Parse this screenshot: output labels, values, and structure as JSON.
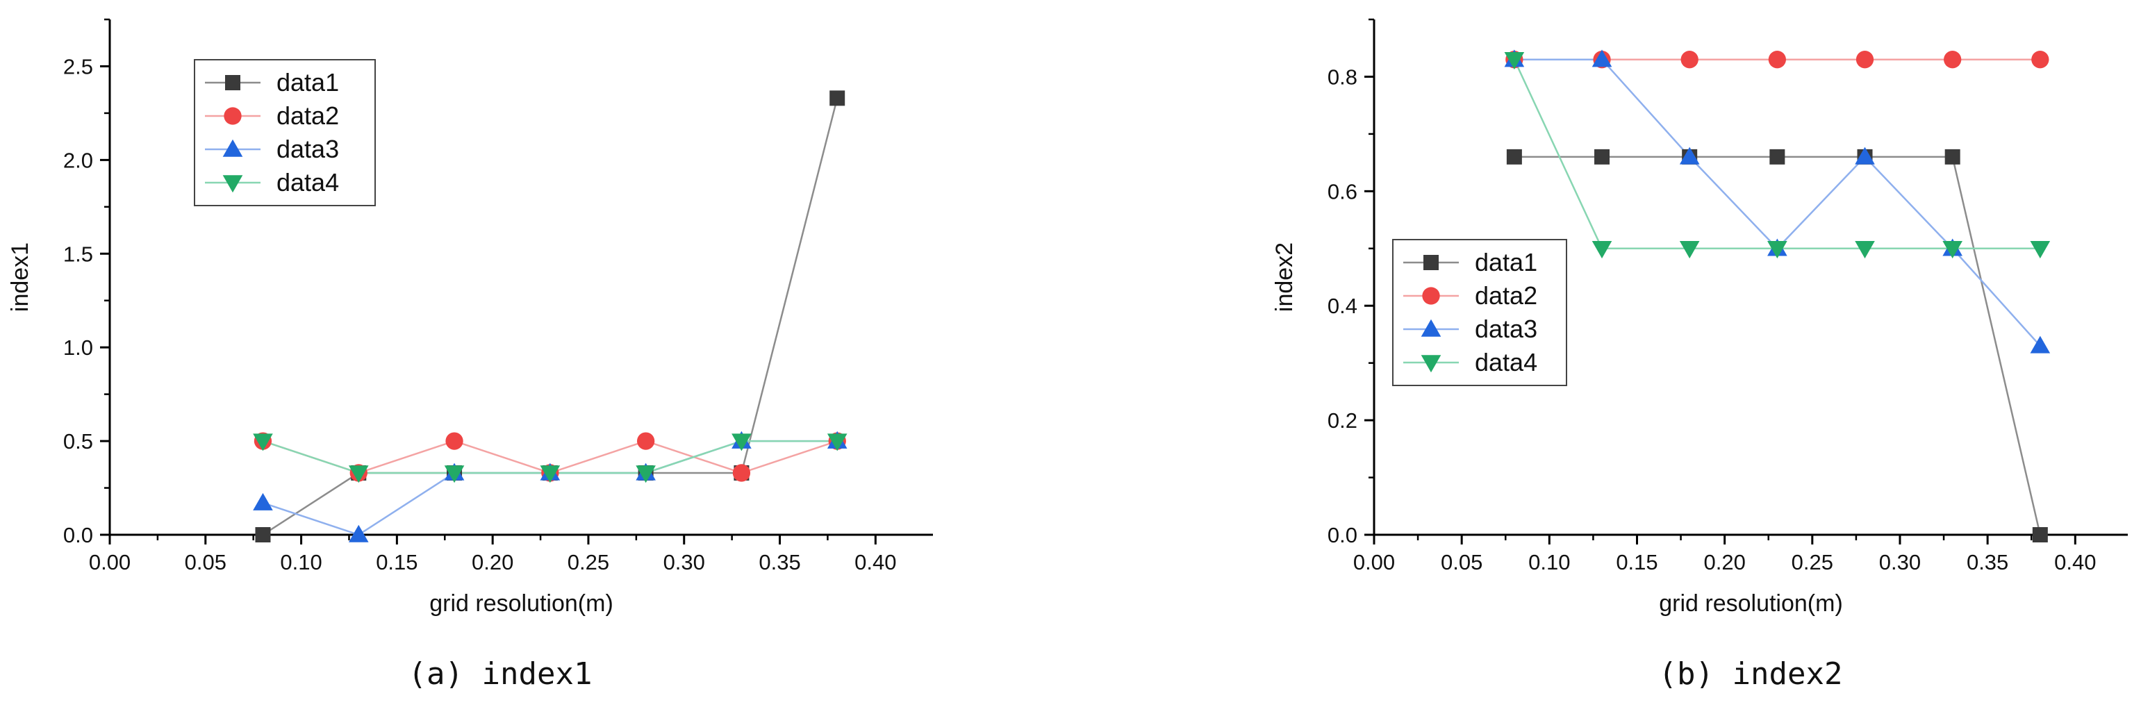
{
  "colors": {
    "data1": "#3a3a3a",
    "data2": "#ee4444",
    "data3": "#2266dd",
    "data4": "#22aa66",
    "data1_line": "#8c8c8c",
    "data2_line": "#f4a3a3",
    "data3_line": "#8fb0ee",
    "data4_line": "#88d6b2"
  },
  "chart_data": [
    {
      "type": "line",
      "caption": "(a)  index1",
      "xlabel": "grid resolution(m)",
      "ylabel": "index1",
      "xlim": [
        0,
        0.43
      ],
      "ylim": [
        0,
        2.75
      ],
      "xticks": [
        "0.00",
        "0.05",
        "0.10",
        "0.15",
        "0.20",
        "0.25",
        "0.30",
        "0.35",
        "0.40"
      ],
      "yticks": [
        "0.0",
        "0.5",
        "1.0",
        "1.5",
        "2.0",
        "2.5"
      ],
      "legend_position": "top-left",
      "x": [
        0.08,
        0.13,
        0.18,
        0.23,
        0.28,
        0.33,
        0.38
      ],
      "series": [
        {
          "name": "data1",
          "marker": "square",
          "values": [
            0.0,
            0.33,
            0.33,
            0.33,
            0.33,
            0.33,
            2.33
          ]
        },
        {
          "name": "data2",
          "marker": "circle",
          "values": [
            0.5,
            0.33,
            0.5,
            0.33,
            0.5,
            0.33,
            0.5
          ]
        },
        {
          "name": "data3",
          "marker": "triangle-up",
          "values": [
            0.17,
            0.0,
            0.33,
            0.33,
            0.33,
            0.5,
            0.5
          ]
        },
        {
          "name": "data4",
          "marker": "triangle-down",
          "values": [
            0.5,
            0.33,
            0.33,
            0.33,
            0.33,
            0.5,
            0.5
          ]
        }
      ]
    },
    {
      "type": "line",
      "caption": "(b)  index2",
      "xlabel": "grid resolution(m)",
      "ylabel": "index2",
      "xlim": [
        0,
        0.43
      ],
      "ylim": [
        0,
        0.9
      ],
      "xticks": [
        "0.00",
        "0.05",
        "0.10",
        "0.15",
        "0.20",
        "0.25",
        "0.30",
        "0.35",
        "0.40"
      ],
      "yticks": [
        "0.0",
        "0.2",
        "0.4",
        "0.6",
        "0.8"
      ],
      "legend_position": "center-left",
      "x": [
        0.08,
        0.13,
        0.18,
        0.23,
        0.28,
        0.33,
        0.38
      ],
      "series": [
        {
          "name": "data1",
          "marker": "square",
          "values": [
            0.66,
            0.66,
            0.66,
            0.66,
            0.66,
            0.66,
            0.0
          ]
        },
        {
          "name": "data2",
          "marker": "circle",
          "values": [
            0.83,
            0.83,
            0.83,
            0.83,
            0.83,
            0.83,
            0.83
          ]
        },
        {
          "name": "data3",
          "marker": "triangle-up",
          "values": [
            0.83,
            0.83,
            0.66,
            0.5,
            0.66,
            0.5,
            0.33
          ]
        },
        {
          "name": "data4",
          "marker": "triangle-down",
          "values": [
            0.83,
            0.5,
            0.5,
            0.5,
            0.5,
            0.5,
            0.5
          ]
        }
      ]
    }
  ]
}
